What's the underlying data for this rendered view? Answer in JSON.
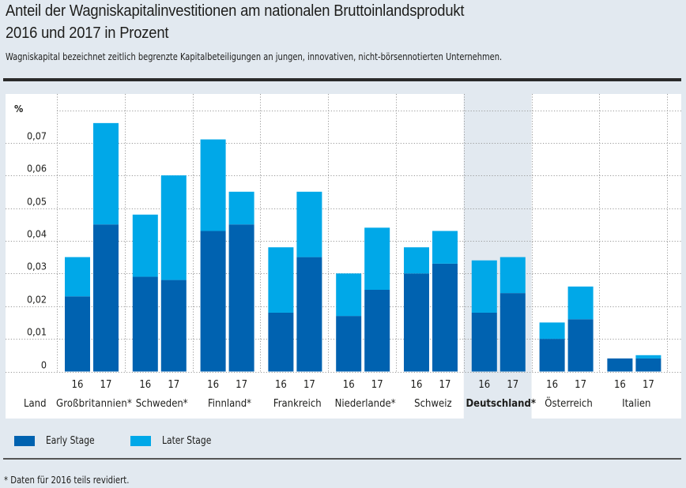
{
  "header": {
    "title_line1": "Anteil der Wagniskapitalinvestitionen am nationalen Bruttoinlandsprodukt",
    "title_line2": "2016 und 2017 in Prozent",
    "subtitle": "Wagniskapital bezeichnet zeitlich begrenzte Kapitalbeteiligungen an jungen, innovativen, nicht-börsennotierten Unternehmen."
  },
  "footnote": "* Daten für 2016 teils revidiert.",
  "colors": {
    "early_stage": "#0062b0",
    "later_stage": "#00a8e8",
    "highlight_column": "#e2e9f0"
  },
  "chart_data": {
    "type": "bar",
    "stacked": true,
    "title": "Anteil der Wagniskapitalinvestitionen am nationalen Bruttoinlandsprodukt 2016 und 2017 in Prozent",
    "ylabel": "%",
    "xlabel": "Land",
    "ylim": [
      0,
      0.077
    ],
    "yticks": [
      0,
      0.01,
      0.02,
      0.03,
      0.04,
      0.05,
      0.06,
      0.07
    ],
    "ytick_labels": [
      "0",
      "0,01",
      "0,02",
      "0,03",
      "0,04",
      "0,05",
      "0,06",
      "0,07"
    ],
    "grid": true,
    "legend_position": "bottom-left",
    "year_labels": [
      "16",
      "17"
    ],
    "highlighted_category": "Deutschland*",
    "categories": [
      "Großbritannien*",
      "Schweden*",
      "Finnland*",
      "Frankreich",
      "Niederlande*",
      "Schweiz",
      "Deutschland*",
      "Österreich",
      "Italien"
    ],
    "series": [
      {
        "name": "Early Stage",
        "values_2016": [
          0.023,
          0.029,
          0.043,
          0.018,
          0.017,
          0.03,
          0.018,
          0.01,
          0.004
        ],
        "values_2017": [
          0.045,
          0.028,
          0.045,
          0.035,
          0.025,
          0.033,
          0.024,
          0.016,
          0.004
        ]
      },
      {
        "name": "Later Stage",
        "values_2016": [
          0.012,
          0.019,
          0.028,
          0.02,
          0.013,
          0.008,
          0.016,
          0.005,
          0.0
        ],
        "values_2017": [
          0.031,
          0.032,
          0.01,
          0.02,
          0.019,
          0.01,
          0.011,
          0.01,
          0.001
        ]
      }
    ],
    "totals_2016": [
      0.035,
      0.048,
      0.071,
      0.038,
      0.03,
      0.038,
      0.034,
      0.015,
      0.004
    ],
    "totals_2017": [
      0.076,
      0.06,
      0.055,
      0.055,
      0.044,
      0.043,
      0.035,
      0.026,
      0.005
    ]
  },
  "legend": {
    "items": [
      {
        "label": "Early Stage"
      },
      {
        "label": "Later Stage"
      }
    ]
  }
}
